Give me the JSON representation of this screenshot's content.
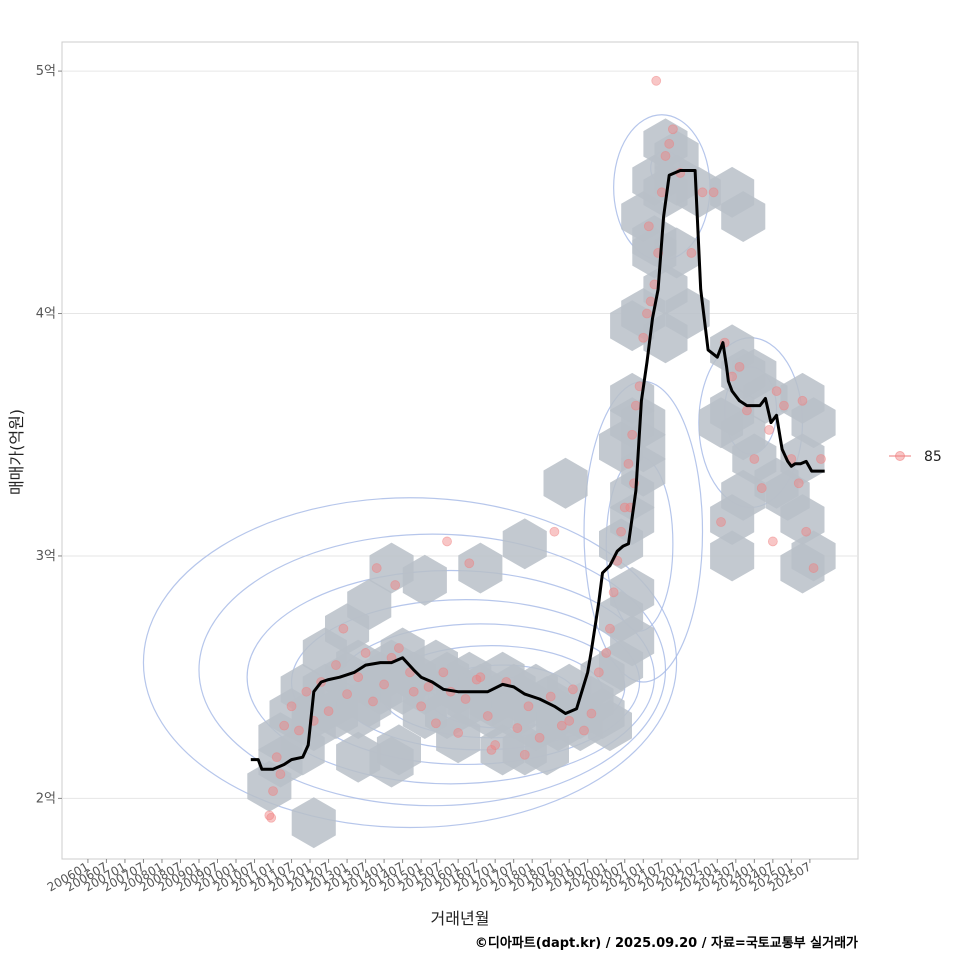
{
  "chart_data": {
    "type": "scatter",
    "title": "",
    "xlabel": "거래년월",
    "ylabel": "매매가(억원)",
    "caption": "©디아파트(dapt.kr) / 2025.09.20 / 자료=국토교통부 실거래가",
    "ylim": [
      1.75,
      5.12
    ],
    "xlim": [
      2005.3,
      2026.8
    ],
    "y_ticks": [
      {
        "value": 2,
        "label": "2억"
      },
      {
        "value": 3,
        "label": "3억"
      },
      {
        "value": 4,
        "label": "4억"
      },
      {
        "value": 5,
        "label": "5억"
      }
    ],
    "x_ticks": [
      "200601",
      "200607",
      "200701",
      "200707",
      "200801",
      "200807",
      "200901",
      "200907",
      "201001",
      "201007",
      "201101",
      "201107",
      "201201",
      "201207",
      "201301",
      "201307",
      "201401",
      "201407",
      "201501",
      "201507",
      "201601",
      "201607",
      "201701",
      "201707",
      "201801",
      "201807",
      "201901",
      "201907",
      "202001",
      "202007",
      "202101",
      "202107",
      "202201",
      "202207",
      "202301",
      "202307",
      "202401",
      "202407",
      "202501",
      "202507"
    ],
    "legend": {
      "position": "right",
      "entries": [
        {
          "label": "85",
          "color": "#f08080"
        }
      ]
    },
    "colors": {
      "points": "#f08080",
      "hex": "#b8c0c8",
      "contour": "#a9bce8",
      "trend": "#000000",
      "grid": "#e6e6e6",
      "border": "#cccccc"
    },
    "series": [
      {
        "name": "trend",
        "x": [
          2010.4,
          2010.6,
          2010.7,
          2011.0,
          2011.3,
          2011.5,
          2011.8,
          2011.95,
          2012.1,
          2012.3,
          2012.5,
          2012.8,
          2013.2,
          2013.5,
          2013.9,
          2014.2,
          2014.5,
          2014.8,
          2015.0,
          2015.3,
          2015.6,
          2016.0,
          2016.4,
          2016.8,
          2017.2,
          2017.5,
          2017.8,
          2018.2,
          2018.6,
          2018.9,
          2019.2,
          2019.5,
          2019.6,
          2019.8,
          2019.9,
          2020.1,
          2020.3,
          2020.45,
          2020.6,
          2020.8,
          2020.95,
          2021.1,
          2021.25,
          2021.4,
          2021.55,
          2021.7,
          2021.85,
          2022.0,
          2022.1,
          2022.25,
          2022.4,
          2022.55,
          2022.75,
          2023.0,
          2023.15,
          2023.25,
          2023.3,
          2023.4,
          2023.6,
          2023.8,
          2023.95,
          2024.15,
          2024.3,
          2024.45,
          2024.6,
          2024.75,
          2024.9,
          2025.0,
          2025.1,
          2025.25,
          2025.4,
          2025.55,
          2025.7,
          2025.8,
          2025.9
        ],
        "y": [
          2.16,
          2.16,
          2.12,
          2.12,
          2.14,
          2.16,
          2.17,
          2.22,
          2.44,
          2.48,
          2.49,
          2.5,
          2.52,
          2.55,
          2.56,
          2.56,
          2.58,
          2.53,
          2.5,
          2.48,
          2.45,
          2.44,
          2.44,
          2.44,
          2.47,
          2.46,
          2.43,
          2.41,
          2.38,
          2.35,
          2.37,
          2.52,
          2.61,
          2.81,
          2.93,
          2.96,
          3.02,
          3.04,
          3.05,
          3.27,
          3.64,
          3.8,
          3.98,
          4.1,
          4.4,
          4.57,
          4.58,
          4.59,
          4.59,
          4.59,
          4.59,
          4.1,
          3.85,
          3.82,
          3.88,
          3.78,
          3.72,
          3.68,
          3.64,
          3.62,
          3.62,
          3.62,
          3.65,
          3.55,
          3.58,
          3.44,
          3.39,
          3.37,
          3.38,
          3.38,
          3.39,
          3.35,
          3.35,
          3.35,
          3.35
        ]
      },
      {
        "name": "85",
        "x": [
          2010.9,
          2011.0,
          2011.1,
          2011.3,
          2011.5,
          2011.7,
          2011.9,
          2012.1,
          2012.3,
          2012.5,
          2012.7,
          2013.0,
          2013.3,
          2013.5,
          2013.7,
          2014.0,
          2014.2,
          2014.4,
          2014.7,
          2015.0,
          2015.2,
          2015.4,
          2015.6,
          2015.8,
          2016.0,
          2016.2,
          2016.5,
          2016.8,
          2017.0,
          2017.3,
          2017.6,
          2017.9,
          2018.2,
          2018.5,
          2018.8,
          2019.1,
          2019.4,
          2019.6,
          2019.8,
          2020.0,
          2020.1,
          2020.2,
          2020.3,
          2020.4,
          2020.5,
          2020.6,
          2020.7,
          2020.8,
          2020.9,
          2021.0,
          2021.1,
          2021.2,
          2021.3,
          2021.4,
          2021.5,
          2021.6,
          2021.7,
          2021.8,
          2022.0,
          2022.3,
          2022.6,
          2022.9,
          2023.2,
          2023.4,
          2023.6,
          2023.8,
          2024.0,
          2024.2,
          2024.4,
          2024.6,
          2024.8,
          2025.0,
          2025.2,
          2025.4,
          2025.6,
          2025.8,
          2013.8,
          2014.3,
          2015.7,
          2016.3,
          2016.9,
          2017.8,
          2018.6,
          2020.65,
          2020.75,
          2021.15,
          2021.35,
          2023.1,
          2024.5,
          2025.3,
          2019.0,
          2012.9,
          2014.8,
          2016.6,
          2011.2,
          2010.95
        ],
        "y": [
          1.93,
          2.03,
          2.17,
          2.3,
          2.38,
          2.28,
          2.44,
          2.32,
          2.48,
          2.36,
          2.55,
          2.43,
          2.5,
          2.6,
          2.4,
          2.47,
          2.58,
          2.62,
          2.52,
          2.38,
          2.46,
          2.31,
          2.52,
          2.44,
          2.27,
          2.41,
          2.49,
          2.34,
          2.22,
          2.48,
          2.29,
          2.38,
          2.25,
          2.42,
          2.3,
          2.45,
          2.28,
          2.35,
          2.52,
          2.6,
          2.7,
          2.85,
          2.98,
          3.1,
          3.2,
          3.38,
          3.5,
          3.62,
          3.7,
          3.9,
          4.0,
          4.05,
          4.12,
          4.25,
          4.5,
          4.65,
          4.7,
          4.76,
          4.58,
          4.25,
          4.5,
          4.5,
          3.88,
          3.74,
          3.78,
          3.6,
          3.4,
          3.28,
          3.52,
          3.68,
          3.62,
          3.4,
          3.3,
          3.1,
          2.95,
          3.4,
          2.95,
          2.88,
          3.06,
          2.97,
          2.2,
          2.18,
          3.1,
          3.2,
          3.3,
          4.36,
          4.96,
          3.14,
          3.06,
          3.64,
          2.32,
          2.7,
          2.44,
          2.5,
          2.1,
          1.92
        ]
      }
    ],
    "hex_bins": {
      "x": [
        2010.9,
        2011.2,
        2011.5,
        2011.8,
        2012.1,
        2012.4,
        2012.7,
        2013.0,
        2013.3,
        2013.6,
        2013.9,
        2014.2,
        2014.5,
        2014.8,
        2015.1,
        2015.4,
        2015.7,
        2016.0,
        2016.3,
        2016.6,
        2016.9,
        2017.2,
        2017.5,
        2017.8,
        2018.1,
        2018.4,
        2018.7,
        2019.0,
        2019.3,
        2019.6,
        2019.9,
        2012.1,
        2012.7,
        2013.3,
        2013.9,
        2014.5,
        2015.1,
        2015.7,
        2016.3,
        2016.9,
        2017.5,
        2018.1,
        2018.7,
        2019.3,
        2019.9,
        2011.2,
        2011.8,
        2012.4,
        2013.0,
        2013.6,
        2014.2,
        2017.2,
        2017.8,
        2018.4,
        2016.0,
        2015.1,
        2014.4,
        2014.2,
        2016.6,
        2017.8,
        2018.9,
        2020.1,
        2020.4,
        2020.7,
        2020.4,
        2020.7,
        2020.4,
        2020.7,
        2020.4,
        2020.7,
        2021.0,
        2020.7,
        2021.0,
        2020.7,
        2021.0,
        2020.7,
        2021.0,
        2021.0,
        2021.3,
        2021.6,
        2021.3,
        2021.6,
        2021.9,
        2021.3,
        2021.6,
        2021.9,
        2022.2,
        2021.6,
        2021.9,
        2022.5,
        2023.4,
        2023.7,
        2023.4,
        2023.7,
        2024.0,
        2024.3,
        2023.1,
        2023.4,
        2023.7,
        2024.0,
        2023.4,
        2023.7,
        2023.4,
        2025.3,
        2025.6,
        2025.3,
        2025.6,
        2025.3,
        2025.3,
        2024.6,
        2024.9,
        2013.3,
        2012.1
      ],
      "y": [
        2.05,
        2.25,
        2.35,
        2.45,
        2.3,
        2.45,
        2.4,
        2.5,
        2.55,
        2.4,
        2.5,
        2.55,
        2.6,
        2.5,
        2.45,
        2.55,
        2.5,
        2.45,
        2.5,
        2.45,
        2.4,
        2.5,
        2.45,
        2.4,
        2.45,
        2.4,
        2.35,
        2.45,
        2.3,
        2.4,
        2.5,
        2.35,
        2.35,
        2.35,
        2.45,
        2.45,
        2.35,
        2.35,
        2.4,
        2.35,
        2.35,
        2.3,
        2.3,
        2.35,
        2.35,
        2.15,
        2.2,
        2.6,
        2.7,
        2.8,
        2.95,
        2.2,
        2.2,
        2.2,
        2.25,
        2.9,
        2.2,
        2.15,
        2.95,
        3.05,
        3.3,
        2.3,
        2.55,
        2.65,
        2.75,
        2.85,
        3.05,
        3.15,
        3.45,
        3.55,
        3.45,
        3.25,
        3.55,
        3.65,
        3.35,
        3.95,
        4.0,
        4.4,
        4.3,
        4.5,
        4.55,
        4.7,
        4.65,
        4.25,
        4.1,
        4.25,
        4.0,
        3.9,
        4.55,
        4.5,
        4.5,
        4.4,
        3.85,
        3.75,
        3.75,
        3.65,
        3.55,
        3.6,
        3.5,
        3.4,
        3.15,
        3.25,
        3.0,
        3.65,
        3.55,
        3.15,
        3.0,
        3.4,
        2.95,
        3.3,
        3.25,
        2.17,
        1.9
      ],
      "r": 0.105
    },
    "contours": [
      {
        "cx": 2017.3,
        "cy": 2.42,
        "rx": 0.9,
        "ry": 0.08
      },
      {
        "cx": 2017.2,
        "cy": 2.42,
        "rx": 2.0,
        "ry": 0.13
      },
      {
        "cx": 2016.9,
        "cy": 2.44,
        "rx": 3.0,
        "ry": 0.19
      },
      {
        "cx": 2016.6,
        "cy": 2.46,
        "rx": 3.9,
        "ry": 0.26
      },
      {
        "cx": 2016.2,
        "cy": 2.48,
        "rx": 4.7,
        "ry": 0.34
      },
      {
        "cx": 2015.8,
        "cy": 2.5,
        "rx": 5.5,
        "ry": 0.44
      },
      {
        "cx": 2015.3,
        "cy": 2.53,
        "rx": 6.3,
        "ry": 0.56
      },
      {
        "cx": 2014.7,
        "cy": 2.56,
        "rx": 7.2,
        "ry": 0.68
      },
      {
        "cx": 2021.6,
        "cy": 4.6,
        "rx": 0.4,
        "ry": 0.07
      },
      {
        "cx": 2021.5,
        "cy": 4.52,
        "rx": 1.3,
        "ry": 0.3
      },
      {
        "cx": 2023.9,
        "cy": 3.6,
        "rx": 0.7,
        "ry": 0.18
      },
      {
        "cx": 2023.9,
        "cy": 3.55,
        "rx": 1.4,
        "ry": 0.35
      },
      {
        "cx": 2020.9,
        "cy": 3.05,
        "rx": 0.9,
        "ry": 0.36
      },
      {
        "cx": 2021.0,
        "cy": 3.1,
        "rx": 1.6,
        "ry": 0.62
      }
    ]
  }
}
